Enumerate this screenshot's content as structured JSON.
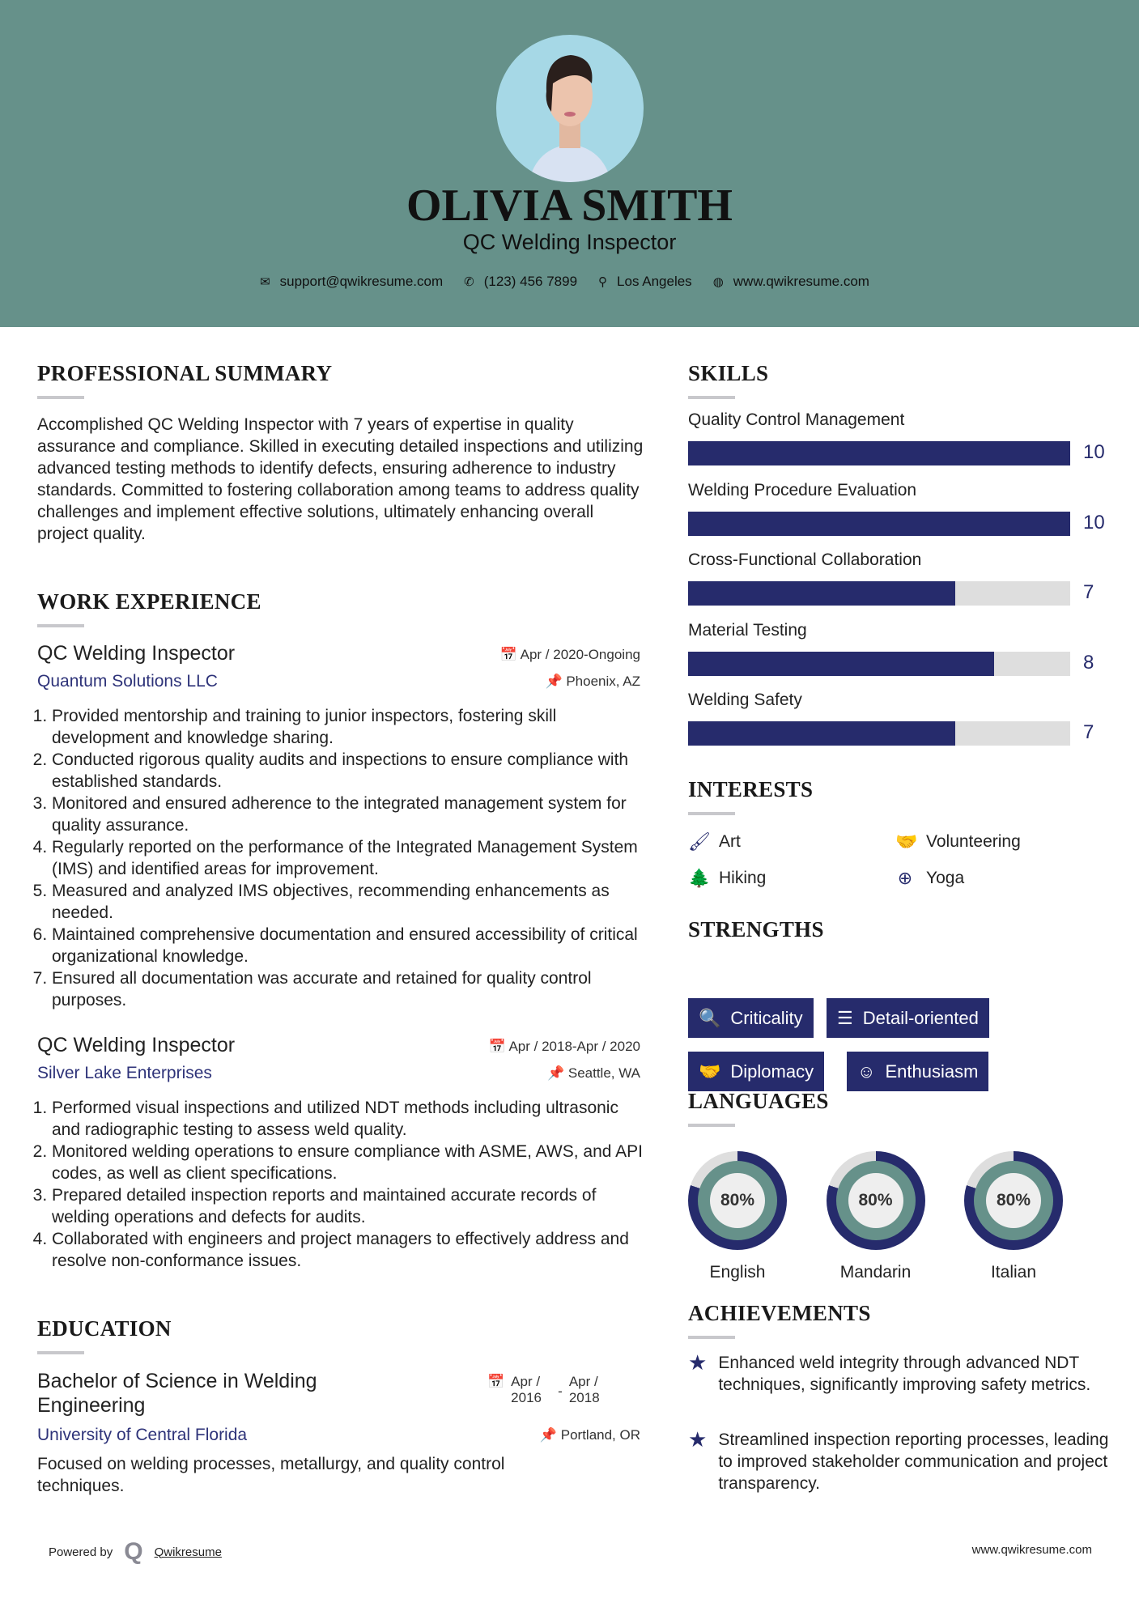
{
  "header": {
    "name": "OLIVIA SMITH",
    "title": "QC Welding Inspector",
    "contact": [
      {
        "icon": "envelope-icon",
        "glyph": "✉",
        "text": "support@qwikresume.com"
      },
      {
        "icon": "phone-icon",
        "glyph": "✆",
        "text": "(123) 456 7899"
      },
      {
        "icon": "map-pin-icon",
        "glyph": "⚲",
        "text": "Los Angeles"
      },
      {
        "icon": "globe-icon",
        "glyph": "◍",
        "text": "www.qwikresume.com"
      }
    ]
  },
  "summary": {
    "heading": "PROFESSIONAL SUMMARY",
    "text": "Accomplished QC Welding Inspector with 7 years of expertise in quality assurance and compliance. Skilled in executing detailed inspections and utilizing advanced testing methods to identify defects, ensuring adherence to industry standards. Committed to fostering collaboration among teams to address quality challenges and implement effective solutions, ultimately enhancing overall project quality."
  },
  "work": {
    "heading": "WORK EXPERIENCE",
    "jobs": [
      {
        "title": "QC Welding Inspector",
        "company": "Quantum Solutions LLC",
        "dates": "Apr / 2020-Ongoing",
        "location": "Phoenix, AZ",
        "items": [
          "Provided mentorship and training to junior inspectors, fostering skill development and knowledge sharing.",
          "Conducted rigorous quality audits and inspections to ensure compliance with established standards.",
          "Monitored and ensured adherence to the integrated management system for quality assurance.",
          "Regularly reported on the performance of the Integrated Management System (IMS) and identified areas for improvement.",
          "Measured and analyzed IMS objectives, recommending enhancements as needed.",
          "Maintained comprehensive documentation and ensured accessibility of critical organizational knowledge.",
          "Ensured all documentation was accurate and retained for quality control purposes."
        ]
      },
      {
        "title": "QC Welding Inspector",
        "company": "Silver Lake Enterprises",
        "dates": "Apr / 2018-Apr / 2020",
        "location": "Seattle, WA",
        "items": [
          "Performed visual inspections and utilized NDT methods including ultrasonic and radiographic testing to assess weld quality.",
          "Monitored welding operations to ensure compliance with ASME, AWS, and API codes, as well as client specifications.",
          "Prepared detailed inspection reports and maintained accurate records of welding operations and defects for audits.",
          "Collaborated with engineers and project managers to effectively address and resolve non-conformance issues."
        ]
      }
    ]
  },
  "education": {
    "heading": "EDUCATION",
    "degree": "Bachelor of Science in Welding Engineering",
    "school": "University of Central Florida",
    "start": "Apr / 2016",
    "sep": "-",
    "end": "Apr / 2018",
    "location": "Portland, OR",
    "text": "Focused on welding processes, metallurgy, and quality control techniques."
  },
  "skills": {
    "heading": "SKILLS",
    "max": 10,
    "items": [
      {
        "label": "Quality Control Management",
        "value": 10
      },
      {
        "label": "Welding Procedure Evaluation",
        "value": 10
      },
      {
        "label": "Cross-Functional Collaboration",
        "value": 7
      },
      {
        "label": "Material Testing",
        "value": 8
      },
      {
        "label": "Welding Safety",
        "value": 7
      }
    ]
  },
  "interests": {
    "heading": "INTERESTS",
    "items": [
      {
        "label": "Art",
        "icon": "paintbrush-icon",
        "glyph": "🖌"
      },
      {
        "label": "Volunteering",
        "icon": "handshake-icon",
        "glyph": "🤝"
      },
      {
        "label": "Hiking",
        "icon": "tree-icon",
        "glyph": "🌲"
      },
      {
        "label": "Yoga",
        "icon": "lifebuoy-icon",
        "glyph": "⊕"
      }
    ]
  },
  "strengths": {
    "heading": "STRENGTHS",
    "items": [
      {
        "label": "Criticality",
        "icon": "search-icon",
        "glyph": "🔍"
      },
      {
        "label": "Detail-oriented",
        "icon": "list-icon",
        "glyph": "☰"
      },
      {
        "label": "Diplomacy",
        "icon": "handshake-icon",
        "glyph": "🤝"
      },
      {
        "label": "Enthusiasm",
        "icon": "smile-icon",
        "glyph": "☺"
      }
    ]
  },
  "languages": {
    "heading": "LANGUAGES",
    "items": [
      {
        "label": "English",
        "percent": 80,
        "text": "80%"
      },
      {
        "label": "Mandarin",
        "percent": 80,
        "text": "80%"
      },
      {
        "label": "Italian",
        "percent": 80,
        "text": "80%"
      }
    ]
  },
  "achievements": {
    "heading": "ACHIEVEMENTS",
    "items": [
      "Enhanced weld integrity through advanced NDT techniques, significantly improving safety metrics.",
      "Streamlined inspection reporting processes, leading to improved stakeholder communication and project transparency."
    ]
  },
  "footer": {
    "powered": "Powered by",
    "brand": "Qwikresume",
    "site": "www.qwikresume.com"
  },
  "colors": {
    "header": "#66918a",
    "accent": "#262b6c",
    "track": "#dedede"
  }
}
